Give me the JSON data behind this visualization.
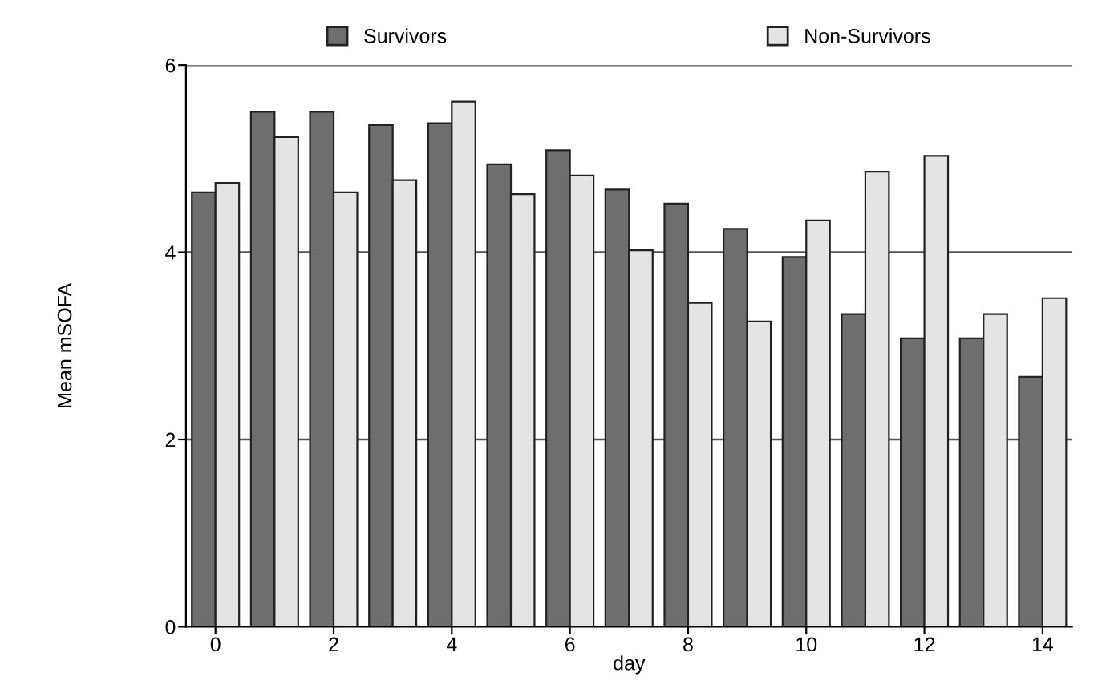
{
  "chart_data": {
    "type": "bar",
    "xlabel": "day",
    "ylabel": "Mean mSOFA",
    "categories": [
      "0",
      null,
      "2",
      null,
      "4",
      null,
      "6",
      null,
      "8",
      null,
      "10",
      null,
      "12",
      null,
      "14"
    ],
    "series": [
      {
        "name": "Survivors",
        "color": "#6e6e6e",
        "values": [
          4.64,
          5.5,
          5.5,
          5.36,
          5.38,
          4.94,
          5.09,
          4.67,
          4.52,
          4.25,
          3.95,
          3.34,
          3.08,
          3.08,
          2.67
        ]
      },
      {
        "name": "Non-Survivors",
        "color": "#e4e4e4",
        "values": [
          4.74,
          5.23,
          4.64,
          4.77,
          5.61,
          4.62,
          4.82,
          4.02,
          3.46,
          3.26,
          4.34,
          4.86,
          5.03,
          3.34,
          3.51
        ]
      }
    ],
    "ylim": [
      0,
      6
    ],
    "yticks": [
      0,
      2,
      4,
      6
    ],
    "grid": "y",
    "legend": "top"
  }
}
